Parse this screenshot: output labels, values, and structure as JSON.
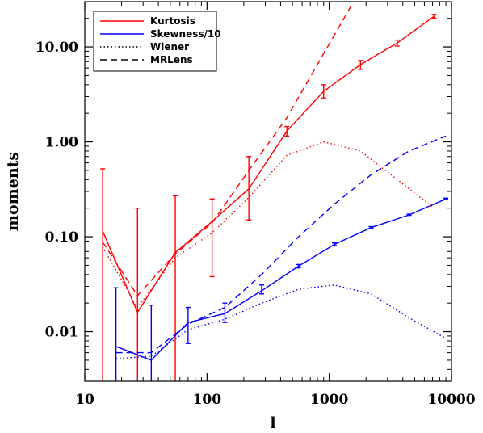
{
  "chart_data": {
    "type": "line",
    "title": "",
    "xlabel": "l",
    "ylabel": "moments",
    "xscale": "log",
    "yscale": "log",
    "xlim": [
      10,
      10000
    ],
    "ylim": [
      0.003,
      30
    ],
    "x_ticks": [
      {
        "value": 10,
        "label": "10"
      },
      {
        "value": 100,
        "label": "100"
      },
      {
        "value": 1000,
        "label": "1000"
      },
      {
        "value": 10000,
        "label": "10000"
      }
    ],
    "y_ticks": [
      {
        "value": 0.01,
        "label": "0.01"
      },
      {
        "value": 0.1,
        "label": "0.10"
      },
      {
        "value": 1,
        "label": "1.00"
      },
      {
        "value": 10,
        "label": "10.00"
      }
    ],
    "legend_position": "top-left",
    "colors": {
      "skewness": "#0000ff",
      "kurtosis": "#ff0000"
    },
    "series": [
      {
        "name": "Kurtosis",
        "legend": true,
        "color": "#ff0000",
        "style": "solid",
        "x": [
          14,
          27,
          55,
          110,
          220,
          450,
          900,
          1800,
          3600,
          7200
        ],
        "y": [
          0.115,
          0.016,
          0.068,
          0.145,
          0.32,
          1.3,
          3.4,
          6.5,
          11,
          21
        ],
        "error_low": [
          0.001,
          0.001,
          0.001,
          0.038,
          0.15,
          1.15,
          2.9,
          5.8,
          10.2,
          20
        ],
        "error_high": [
          0.52,
          0.2,
          0.27,
          0.25,
          0.7,
          1.45,
          4.0,
          7.2,
          11.8,
          22
        ]
      },
      {
        "name": "Skewness/10",
        "legend": true,
        "color": "#0000ff",
        "style": "solid",
        "x": [
          18,
          35,
          70,
          140,
          280,
          560,
          1100,
          2200,
          4500,
          9000
        ],
        "y": [
          0.007,
          0.005,
          0.0125,
          0.0155,
          0.027,
          0.049,
          0.083,
          0.125,
          0.17,
          0.25
        ],
        "error_low": [
          0.001,
          0.001,
          0.0075,
          0.0125,
          0.025,
          0.047,
          0.081,
          0.123,
          0.168,
          0.247
        ],
        "error_high": [
          0.029,
          0.019,
          0.018,
          0.02,
          0.031,
          0.051,
          0.086,
          0.128,
          0.173,
          0.255
        ]
      },
      {
        "name": "Wiener",
        "legend": true,
        "color": "#000000",
        "style": "dotted",
        "x": [],
        "y": []
      },
      {
        "name": "MRLens",
        "legend": true,
        "color": "#000000",
        "style": "dashed",
        "x": [],
        "y": []
      },
      {
        "name": "",
        "legend": false,
        "color": "#ff0000",
        "style": "dotted",
        "x": [
          14,
          27,
          55,
          110,
          220,
          450,
          900,
          1800,
          3600,
          7200
        ],
        "y": [
          0.078,
          0.018,
          0.06,
          0.11,
          0.26,
          0.72,
          1.0,
          0.8,
          0.4,
          0.2
        ]
      },
      {
        "name": "",
        "legend": false,
        "color": "#ff0000",
        "style": "dashed",
        "x": [
          14,
          27,
          55,
          110,
          220,
          450,
          900,
          1800
        ],
        "y": [
          0.088,
          0.024,
          0.066,
          0.14,
          0.5,
          1.8,
          8.5,
          40
        ]
      },
      {
        "name": "",
        "legend": false,
        "color": "#0000ff",
        "style": "dotted",
        "x": [
          18,
          35,
          70,
          140,
          280,
          560,
          1100,
          2200,
          4500,
          9000
        ],
        "y": [
          0.0052,
          0.0055,
          0.0105,
          0.0135,
          0.02,
          0.028,
          0.031,
          0.025,
          0.014,
          0.0085
        ]
      },
      {
        "name": "",
        "legend": false,
        "color": "#0000ff",
        "style": "dashed",
        "x": [
          18,
          35,
          70,
          140,
          280,
          560,
          1100,
          2200,
          4500,
          9000
        ],
        "y": [
          0.006,
          0.006,
          0.012,
          0.018,
          0.04,
          0.1,
          0.22,
          0.45,
          0.8,
          1.15
        ]
      }
    ]
  }
}
